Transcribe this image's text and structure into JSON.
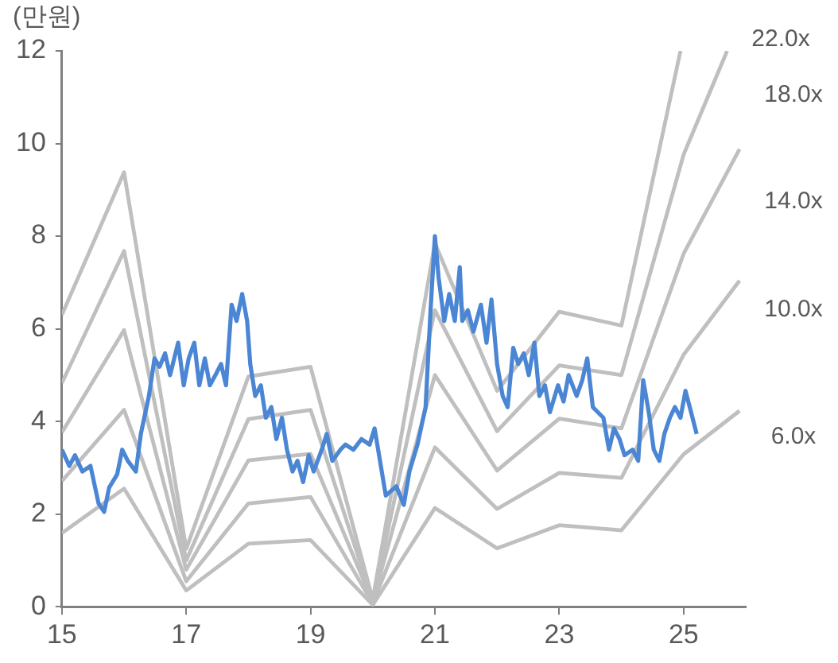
{
  "chart_data": {
    "type": "line",
    "ylabel": "(만원)",
    "xlim": [
      15,
      26
    ],
    "xticks": [
      15,
      17,
      19,
      21,
      23,
      25
    ],
    "ylim": [
      0,
      12
    ],
    "yticks": [
      0,
      2,
      4,
      6,
      8,
      10,
      12
    ],
    "grid": false,
    "legend": false,
    "marker": "none",
    "line_style": "solid",
    "series": [
      {
        "color": "#4a86d4",
        "x": [
          15.0,
          15.12,
          15.21,
          15.33,
          15.46,
          15.59,
          15.68,
          15.76,
          15.89,
          15.97,
          16.06,
          16.19,
          16.27,
          16.4,
          16.49,
          16.57,
          16.66,
          16.74,
          16.87,
          16.96,
          17.04,
          17.13,
          17.21,
          17.3,
          17.38,
          17.47,
          17.56,
          17.64,
          17.73,
          17.81,
          17.9,
          17.98,
          18.03,
          18.11,
          18.2,
          18.28,
          18.37,
          18.45,
          18.54,
          18.62,
          18.71,
          18.79,
          18.88,
          18.97,
          19.05,
          19.18,
          19.26,
          19.35,
          19.48,
          19.56,
          19.69,
          19.82,
          19.95,
          20.03,
          20.21,
          20.38,
          20.5,
          20.59,
          20.72,
          20.85,
          20.93,
          21.0,
          21.06,
          21.15,
          21.23,
          21.32,
          21.4,
          21.44,
          21.53,
          21.62,
          21.74,
          21.83,
          21.91,
          22.0,
          22.09,
          22.17,
          22.26,
          22.34,
          22.43,
          22.51,
          22.6,
          22.68,
          22.77,
          22.85,
          22.98,
          23.07,
          23.15,
          23.28,
          23.37,
          23.45,
          23.54,
          23.62,
          23.71,
          23.8,
          23.88,
          23.97,
          24.05,
          24.18,
          24.27,
          24.35,
          24.44,
          24.52,
          24.61,
          24.69,
          24.78,
          24.86,
          24.95,
          25.03,
          25.12,
          25.21
        ],
        "values": [
          3.39,
          3.04,
          3.27,
          2.92,
          3.04,
          2.23,
          2.05,
          2.57,
          2.86,
          3.39,
          3.15,
          2.92,
          3.73,
          4.55,
          5.36,
          5.18,
          5.47,
          5.0,
          5.7,
          4.78,
          5.36,
          5.7,
          4.78,
          5.36,
          4.78,
          5.0,
          5.24,
          4.78,
          6.52,
          6.17,
          6.75,
          6.17,
          5.24,
          4.55,
          4.78,
          4.08,
          4.31,
          3.62,
          4.08,
          3.39,
          2.92,
          3.15,
          2.69,
          3.27,
          2.92,
          3.39,
          3.73,
          3.15,
          3.39,
          3.5,
          3.39,
          3.62,
          3.5,
          3.85,
          2.4,
          2.6,
          2.2,
          2.92,
          3.5,
          4.31,
          6.4,
          8.0,
          7.1,
          6.17,
          6.75,
          6.17,
          7.33,
          6.17,
          6.4,
          5.94,
          6.52,
          5.7,
          6.63,
          5.24,
          4.55,
          4.31,
          5.59,
          5.24,
          5.47,
          5.0,
          5.7,
          4.55,
          4.78,
          4.2,
          4.78,
          4.43,
          5.0,
          4.55,
          4.89,
          5.36,
          4.31,
          4.2,
          4.08,
          3.39,
          3.85,
          3.62,
          3.27,
          3.39,
          3.15,
          4.89,
          4.2,
          3.39,
          3.15,
          3.73,
          4.08,
          4.31,
          4.08,
          4.66,
          4.2,
          3.73
        ]
      },
      {
        "name": "22.0x",
        "color": "#bfbfbf",
        "x": [
          15,
          16,
          17,
          18,
          19,
          20,
          21,
          22,
          23,
          24,
          24.95
        ],
        "values": [
          6.3,
          9.38,
          1.25,
          4.97,
          5.18,
          0.15,
          7.85,
          4.66,
          6.37,
          6.07,
          12.0
        ]
      },
      {
        "name": "18.0x",
        "color": "#bfbfbf",
        "x": [
          15,
          16,
          17,
          18,
          19,
          20,
          21,
          22,
          23,
          24,
          25,
          25.7
        ],
        "values": [
          4.83,
          7.68,
          1.0,
          4.05,
          4.25,
          0.12,
          6.4,
          3.79,
          5.21,
          5.0,
          9.76,
          12.0
        ]
      },
      {
        "name": "14.0x",
        "color": "#bfbfbf",
        "x": [
          15,
          16,
          17,
          18,
          19,
          20,
          21,
          22,
          23,
          24,
          25,
          25.9
        ],
        "values": [
          3.76,
          5.97,
          0.8,
          3.16,
          3.3,
          0.1,
          5.0,
          2.94,
          4.06,
          3.85,
          7.62,
          9.88
        ]
      },
      {
        "name": "10.0x",
        "color": "#bfbfbf",
        "x": [
          15,
          16,
          17,
          18,
          19,
          20,
          21,
          22,
          23,
          24,
          25,
          25.9
        ],
        "values": [
          2.71,
          4.25,
          0.55,
          2.23,
          2.37,
          0.07,
          3.44,
          2.11,
          2.89,
          2.78,
          5.44,
          7.04
        ]
      },
      {
        "name": "6.0x",
        "color": "#bfbfbf",
        "x": [
          15,
          16,
          17,
          18,
          19,
          20,
          21,
          22,
          23,
          24,
          25,
          25.9
        ],
        "values": [
          1.59,
          2.55,
          0.35,
          1.36,
          1.44,
          0.04,
          2.13,
          1.26,
          1.76,
          1.65,
          3.29,
          4.23
        ]
      }
    ]
  }
}
